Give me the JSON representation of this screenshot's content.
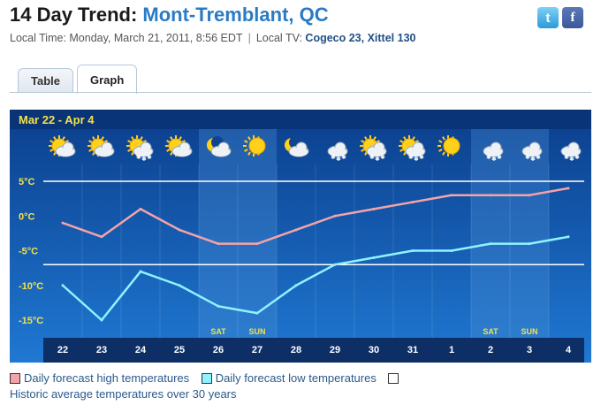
{
  "header": {
    "title_prefix": "14 Day Trend:",
    "title_location": "Mont-Tremblant, QC",
    "local_time": "Local Time: Monday, March 21, 2011, 8:56 EDT",
    "separator": "|",
    "local_tv_label": "Local TV:",
    "local_tv_value": "Cogeco 23, Xittel 130",
    "twitter_icon": "twitter-icon",
    "facebook_icon": "facebook-icon"
  },
  "tabs": [
    {
      "label": "Table",
      "active": false
    },
    {
      "label": "Graph",
      "active": true
    }
  ],
  "chart_data": {
    "type": "line",
    "title": "Mar 22 - Apr 4",
    "categories": [
      "22",
      "23",
      "24",
      "25",
      "26",
      "27",
      "28",
      "29",
      "30",
      "31",
      "1",
      "2",
      "3",
      "4"
    ],
    "weekend_labels": [
      "",
      "",
      "",
      "",
      "SAT",
      "SUN",
      "",
      "",
      "",
      "",
      "",
      "SAT",
      "SUN",
      ""
    ],
    "icons": [
      "cloudy-sun-icon",
      "cloudy-sun-icon",
      "snow-sun-icon",
      "cloudy-sun-icon",
      "moon-cloud-icon",
      "sun-icon",
      "moon-cloud-icon",
      "snow-cloud-icon",
      "snow-sun-icon",
      "snow-sun-icon",
      "sun-icon",
      "snow-cloud-icon",
      "snow-cloud-icon",
      "snow-cloud-icon"
    ],
    "yticks": [
      "5°C",
      "0°C",
      "-5°C",
      "-10°C",
      "-15°C"
    ],
    "ytick_values": [
      5,
      0,
      -5,
      -10,
      -15
    ],
    "ylim": [
      -17,
      7
    ],
    "historic_high": 5,
    "historic_low": -7,
    "series": [
      {
        "name": "Daily forecast high temperatures",
        "color": "#f4a3a8",
        "values": [
          -1,
          -3,
          1,
          -2,
          -4,
          -4,
          -2,
          0,
          1,
          2,
          3,
          3,
          3,
          4
        ]
      },
      {
        "name": "Daily forecast low temperatures",
        "color": "#8ff3ff",
        "values": [
          -10,
          -15,
          -8,
          -10,
          -13,
          -14,
          -10,
          -7,
          -6,
          -5,
          -5,
          -4,
          -4,
          -3
        ]
      }
    ],
    "colors": {
      "bg_top": "#0b3e8c",
      "bg_bottom": "#1f78d2",
      "weekend": "#4a8fd6",
      "grid": "#ffffff",
      "header_text": "#f2e24a"
    }
  },
  "legend": {
    "high_label": "Daily forecast high temperatures",
    "low_label": "Daily forecast low temperatures",
    "historic_label": "Historic average temperatures over 30 years",
    "high_color": "#f4a3a8",
    "low_color": "#8ff3ff",
    "historic_color": "#ffffff"
  }
}
